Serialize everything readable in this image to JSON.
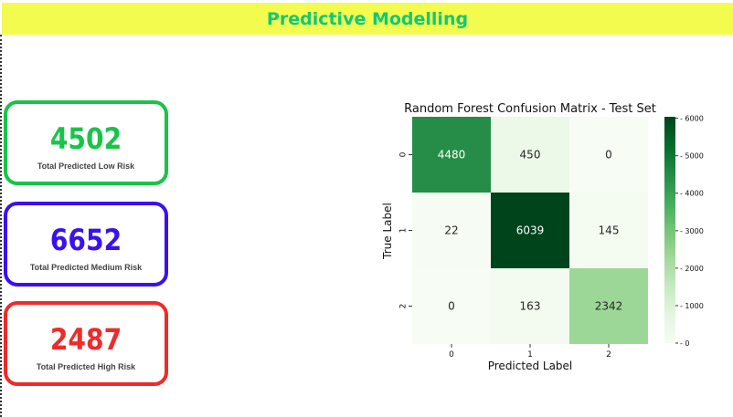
{
  "header": {
    "title": "Predictive Modelling"
  },
  "colors": {
    "header_bg": "#f4fb4f",
    "header_text": "#10c978",
    "low": "#18c447",
    "medium": "#3b11ee",
    "high": "#f02a2a"
  },
  "cards": [
    {
      "value": "4502",
      "label": "Total Predicted Low Risk",
      "color": "#18c447"
    },
    {
      "value": "6652",
      "label": "Total Predicted Medium Risk",
      "color": "#3b11ee"
    },
    {
      "value": "2487",
      "label": "Total Predicted High Risk",
      "color": "#f02a2a"
    }
  ],
  "chart_data": {
    "type": "heatmap",
    "title": "Random Forest Confusion Matrix - Test Set",
    "xlabel": "Predicted Label",
    "ylabel": "True Label",
    "x_categories": [
      "0",
      "1",
      "2"
    ],
    "y_categories": [
      "0",
      "1",
      "2"
    ],
    "values": [
      [
        4480,
        450,
        0
      ],
      [
        22,
        6039,
        145
      ],
      [
        0,
        163,
        2342
      ]
    ],
    "colormap": "Greens",
    "colorbar": {
      "min": 0,
      "max": 6039,
      "ticks": [
        "0",
        "1000",
        "2000",
        "3000",
        "4000",
        "5000",
        "6000"
      ]
    }
  }
}
